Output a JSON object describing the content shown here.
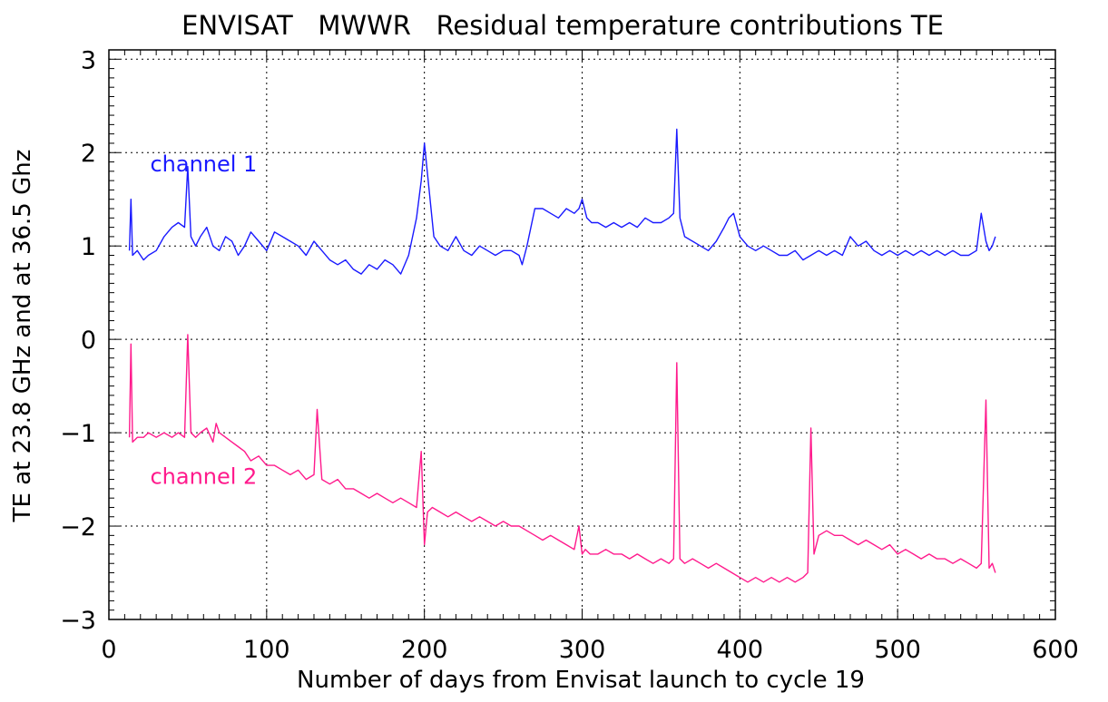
{
  "chart_data": {
    "type": "line",
    "title": "ENVISAT   MWWR   Residual temperature contributions TE",
    "xlabel": "Number of days from Envisat launch to cycle 19",
    "ylabel": "TE at 23.8 GHz and at 36.5 Ghz",
    "xlim": [
      0,
      600
    ],
    "ylim": [
      -3,
      3.1
    ],
    "xticks": [
      "0",
      "100",
      "200",
      "300",
      "400",
      "500",
      "600"
    ],
    "yticks": [
      "-3",
      "-2",
      "-1",
      "0",
      "1",
      "2",
      "3"
    ],
    "grid": true,
    "annotations": [
      {
        "text": "channel 1",
        "x": 25,
        "y": 1.8
      },
      {
        "text": "channel 2",
        "x": 25,
        "y": -1.55
      }
    ],
    "series": [
      {
        "name": "channel 1",
        "color": "#1a1aff",
        "x": [
          13,
          14,
          15,
          18,
          22,
          25,
          30,
          35,
          40,
          44,
          48,
          50,
          52,
          55,
          58,
          62,
          66,
          70,
          74,
          78,
          82,
          86,
          90,
          95,
          100,
          105,
          110,
          115,
          120,
          125,
          130,
          135,
          140,
          145,
          150,
          155,
          160,
          165,
          170,
          175,
          180,
          185,
          190,
          195,
          198,
          200,
          203,
          206,
          210,
          215,
          220,
          225,
          230,
          235,
          240,
          245,
          250,
          255,
          260,
          262,
          265,
          270,
          275,
          280,
          285,
          290,
          295,
          298,
          300,
          303,
          306,
          310,
          315,
          320,
          325,
          330,
          335,
          340,
          345,
          350,
          355,
          358,
          360,
          362,
          365,
          370,
          375,
          380,
          385,
          390,
          393,
          396,
          400,
          405,
          410,
          415,
          420,
          425,
          430,
          435,
          440,
          445,
          450,
          455,
          460,
          465,
          470,
          475,
          480,
          485,
          490,
          495,
          500,
          505,
          510,
          515,
          520,
          525,
          530,
          535,
          540,
          545,
          550,
          553,
          556,
          558,
          560,
          562
        ],
        "y": [
          0.95,
          1.5,
          0.9,
          0.95,
          0.85,
          0.9,
          0.95,
          1.1,
          1.2,
          1.25,
          1.2,
          1.85,
          1.1,
          1.0,
          1.1,
          1.2,
          1.0,
          0.95,
          1.1,
          1.05,
          0.9,
          1.0,
          1.15,
          1.05,
          0.95,
          1.15,
          1.1,
          1.05,
          1.0,
          0.9,
          1.05,
          0.95,
          0.85,
          0.8,
          0.85,
          0.75,
          0.7,
          0.8,
          0.75,
          0.85,
          0.8,
          0.7,
          0.9,
          1.3,
          1.7,
          2.1,
          1.6,
          1.1,
          1.0,
          0.95,
          1.1,
          0.95,
          0.9,
          1.0,
          0.95,
          0.9,
          0.95,
          0.95,
          0.9,
          0.8,
          1.0,
          1.4,
          1.4,
          1.35,
          1.3,
          1.4,
          1.35,
          1.4,
          1.5,
          1.3,
          1.25,
          1.25,
          1.2,
          1.25,
          1.2,
          1.25,
          1.2,
          1.3,
          1.25,
          1.25,
          1.3,
          1.35,
          2.25,
          1.3,
          1.1,
          1.05,
          1.0,
          0.95,
          1.05,
          1.2,
          1.3,
          1.35,
          1.1,
          1.0,
          0.95,
          1.0,
          0.95,
          0.9,
          0.9,
          0.95,
          0.85,
          0.9,
          0.95,
          0.9,
          0.95,
          0.9,
          1.1,
          1.0,
          1.05,
          0.95,
          0.9,
          0.95,
          0.9,
          0.95,
          0.9,
          0.95,
          0.9,
          0.95,
          0.9,
          0.95,
          0.9,
          0.9,
          0.95,
          1.35,
          1.05,
          0.95,
          1.0,
          1.1
        ]
      },
      {
        "name": "channel 2",
        "color": "#ff1a8c",
        "x": [
          13,
          14,
          15,
          18,
          22,
          25,
          30,
          35,
          40,
          44,
          48,
          50,
          52,
          55,
          58,
          62,
          66,
          68,
          70,
          74,
          78,
          82,
          86,
          90,
          95,
          100,
          105,
          110,
          115,
          120,
          125,
          130,
          132,
          135,
          140,
          145,
          150,
          155,
          160,
          165,
          170,
          175,
          180,
          185,
          190,
          195,
          198,
          200,
          202,
          205,
          210,
          215,
          220,
          225,
          230,
          235,
          240,
          245,
          250,
          255,
          260,
          265,
          270,
          275,
          280,
          285,
          290,
          295,
          298,
          300,
          302,
          305,
          310,
          315,
          320,
          325,
          330,
          335,
          340,
          345,
          350,
          355,
          358,
          360,
          362,
          365,
          370,
          375,
          380,
          385,
          390,
          395,
          400,
          405,
          410,
          415,
          420,
          425,
          430,
          435,
          440,
          443,
          445,
          447,
          450,
          455,
          460,
          465,
          470,
          475,
          480,
          485,
          490,
          495,
          500,
          505,
          510,
          515,
          520,
          525,
          530,
          535,
          540,
          545,
          550,
          553,
          556,
          558,
          560,
          562
        ],
        "y": [
          -1.05,
          -0.05,
          -1.1,
          -1.05,
          -1.05,
          -1.0,
          -1.05,
          -1.0,
          -1.05,
          -1.0,
          -1.05,
          0.05,
          -1.0,
          -1.05,
          -1.0,
          -0.95,
          -1.1,
          -0.9,
          -1.0,
          -1.05,
          -1.1,
          -1.15,
          -1.2,
          -1.3,
          -1.25,
          -1.35,
          -1.35,
          -1.4,
          -1.45,
          -1.4,
          -1.5,
          -1.45,
          -0.75,
          -1.5,
          -1.55,
          -1.5,
          -1.6,
          -1.6,
          -1.65,
          -1.7,
          -1.65,
          -1.7,
          -1.75,
          -1.7,
          -1.75,
          -1.8,
          -1.2,
          -2.2,
          -1.85,
          -1.8,
          -1.85,
          -1.9,
          -1.85,
          -1.9,
          -1.95,
          -1.9,
          -1.95,
          -2.0,
          -1.95,
          -2.0,
          -2.0,
          -2.05,
          -2.1,
          -2.15,
          -2.1,
          -2.15,
          -2.2,
          -2.25,
          -2.0,
          -2.3,
          -2.25,
          -2.3,
          -2.3,
          -2.25,
          -2.3,
          -2.3,
          -2.35,
          -2.3,
          -2.35,
          -2.4,
          -2.35,
          -2.4,
          -2.35,
          -0.25,
          -2.35,
          -2.4,
          -2.35,
          -2.4,
          -2.45,
          -2.4,
          -2.45,
          -2.5,
          -2.55,
          -2.6,
          -2.55,
          -2.6,
          -2.55,
          -2.6,
          -2.55,
          -2.6,
          -2.55,
          -2.5,
          -0.95,
          -2.3,
          -2.1,
          -2.05,
          -2.1,
          -2.1,
          -2.15,
          -2.2,
          -2.15,
          -2.2,
          -2.25,
          -2.2,
          -2.3,
          -2.25,
          -2.3,
          -2.35,
          -2.3,
          -2.35,
          -2.35,
          -2.4,
          -2.35,
          -2.4,
          -2.45,
          -2.4,
          -0.65,
          -2.45,
          -2.4,
          -2.5
        ]
      }
    ]
  }
}
